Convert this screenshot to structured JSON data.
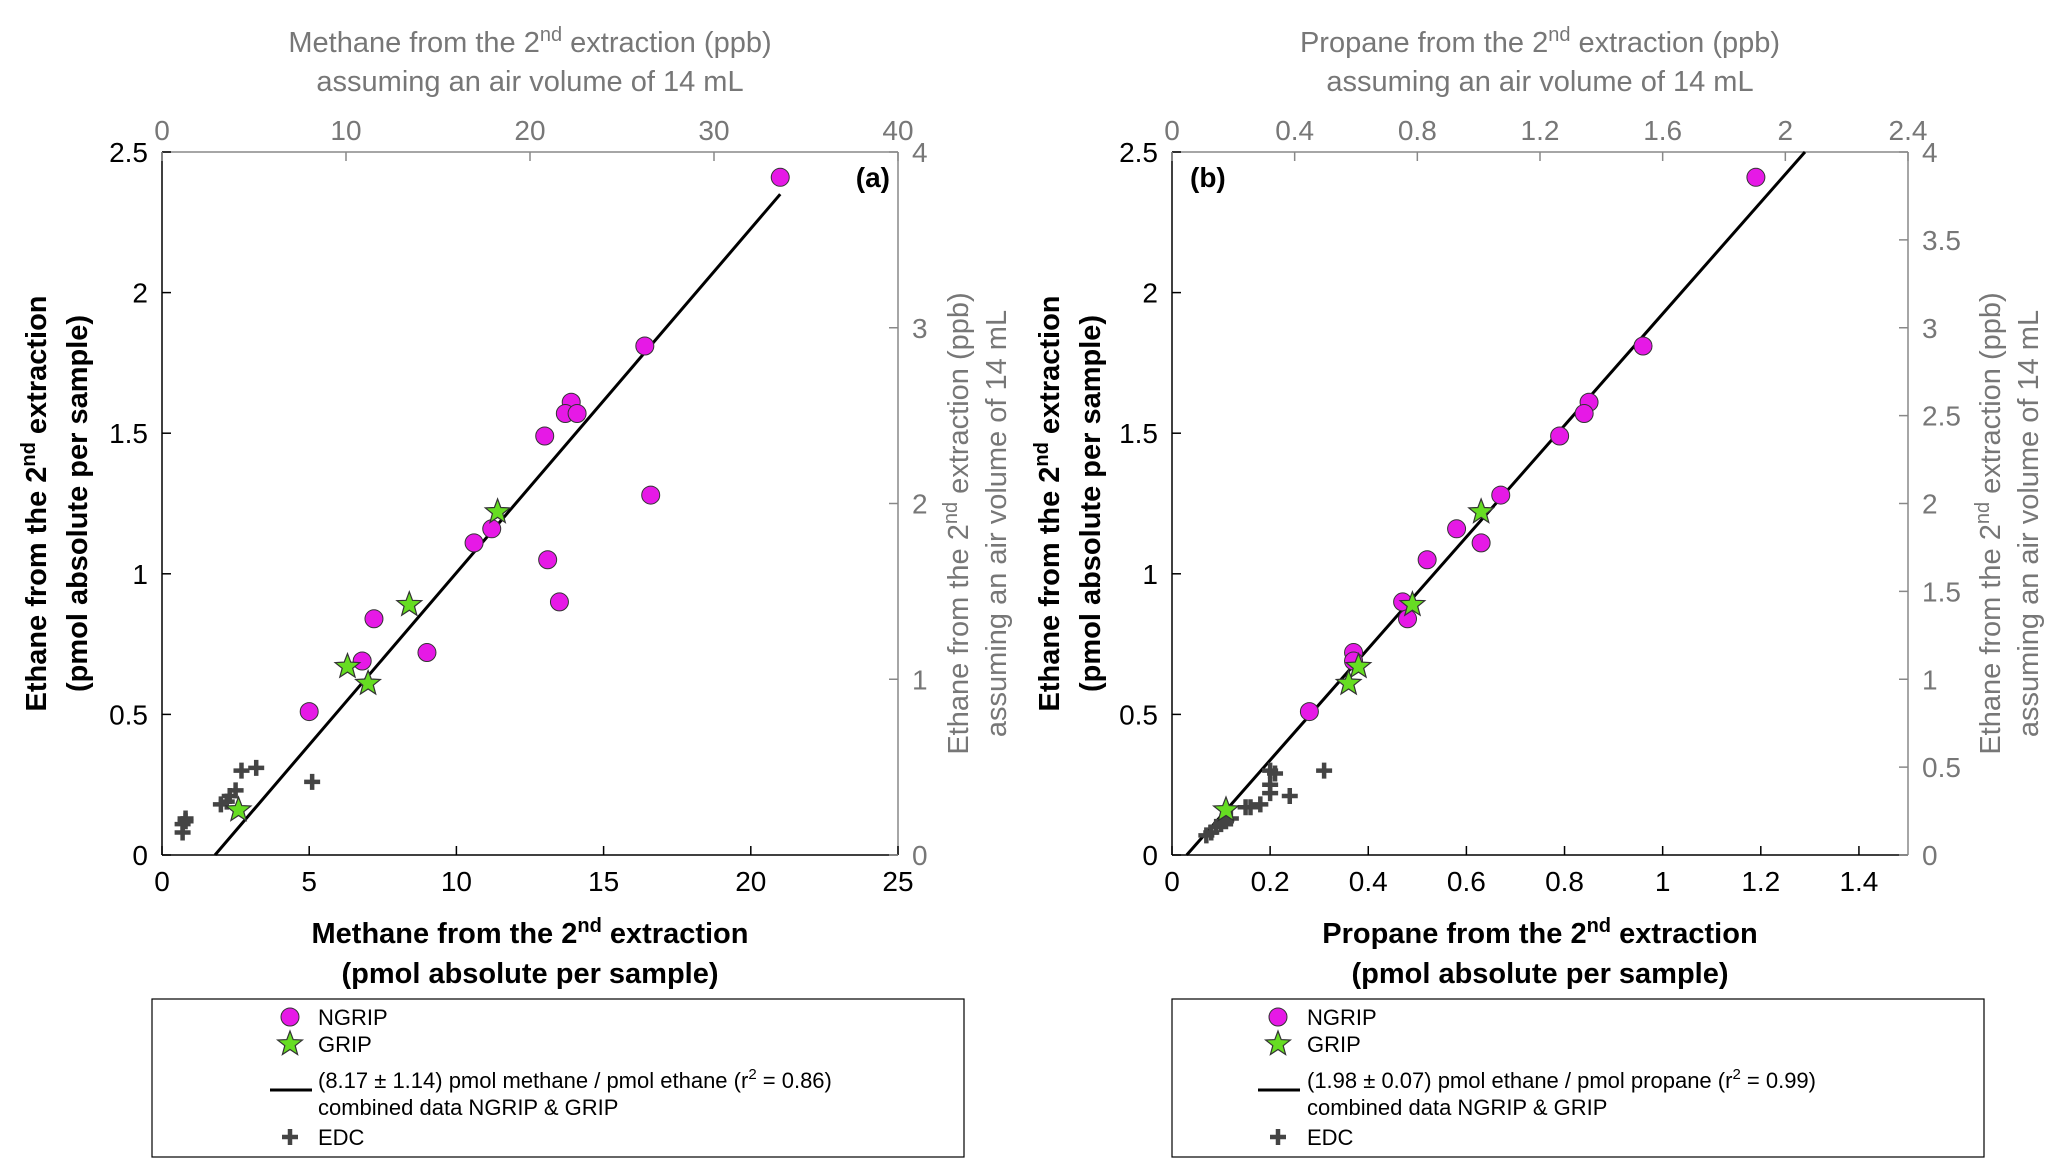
{
  "chart_data": [
    {
      "type": "scatter",
      "panel_label": "(a)",
      "xlabel": {
        "pre": "Methane from the 2",
        "sup": "nd",
        "post": " extraction",
        "line2": "(pmol absolute per sample)"
      },
      "ylabel": {
        "pre": "Ethane from the 2",
        "sup": "nd",
        "post": " extraction",
        "line2": "(pmol absolute per sample)"
      },
      "top_label": {
        "pre": "Methane from the 2",
        "sup": "nd",
        "post": " extraction (ppb)",
        "line2": "assuming an air volume of 14 mL"
      },
      "right_label": {
        "pre": "Ethane from the 2",
        "sup": "nd",
        "post": " extraction (ppb)",
        "line2": "assuming an air volume of 14 mL"
      },
      "xlim": [
        0,
        25
      ],
      "ylim": [
        0,
        2.5
      ],
      "xticks": [
        "0",
        "5",
        "10",
        "15",
        "20",
        "25"
      ],
      "yticks": [
        "0",
        "0.5",
        "1",
        "1.5",
        "2",
        "2.5"
      ],
      "top_lim": [
        0,
        40
      ],
      "top_ticks": [
        "0",
        "10",
        "20",
        "30",
        "40"
      ],
      "right_lim": [
        0,
        4
      ],
      "right_ticks": [
        "0",
        "1",
        "2",
        "3",
        "4"
      ],
      "series": [
        {
          "name": "NGRIP",
          "marker": "circle",
          "color": "#e619e6",
          "points": [
            [
              21.0,
              2.41
            ],
            [
              16.4,
              1.81
            ],
            [
              16.6,
              1.28
            ],
            [
              13.9,
              1.61
            ],
            [
              13.7,
              1.57
            ],
            [
              14.1,
              1.57
            ],
            [
              13.0,
              1.49
            ],
            [
              11.2,
              1.16
            ],
            [
              10.6,
              1.11
            ],
            [
              13.1,
              1.05
            ],
            [
              13.5,
              0.9
            ],
            [
              7.2,
              0.84
            ],
            [
              9.0,
              0.72
            ],
            [
              6.8,
              0.69
            ],
            [
              5.0,
              0.51
            ]
          ]
        },
        {
          "name": "GRIP",
          "marker": "star",
          "color": "#66dd22",
          "points": [
            [
              11.4,
              1.22
            ],
            [
              8.4,
              0.89
            ],
            [
              6.3,
              0.67
            ],
            [
              7.0,
              0.61
            ],
            [
              2.6,
              0.16
            ]
          ]
        },
        {
          "name": "EDC",
          "marker": "plus",
          "color": "#444444",
          "points": [
            [
              0.7,
              0.08
            ],
            [
              0.7,
              0.11
            ],
            [
              0.8,
              0.12
            ],
            [
              0.8,
              0.13
            ],
            [
              2.0,
              0.18
            ],
            [
              2.2,
              0.19
            ],
            [
              2.3,
              0.21
            ],
            [
              2.5,
              0.23
            ],
            [
              2.7,
              0.3
            ],
            [
              3.2,
              0.31
            ],
            [
              5.1,
              0.26
            ]
          ]
        }
      ],
      "fit": {
        "x": [
          1.8,
          21.0
        ],
        "y": [
          0.0,
          2.35
        ]
      },
      "legend": [
        {
          "marker": "circle",
          "lines": [
            "NGRIP"
          ]
        },
        {
          "marker": "star",
          "lines": [
            "GRIP"
          ]
        },
        {
          "marker": "line",
          "lines": [
            "(8.17 ± 1.14) pmol methane / pmol ethane (r2 = 0.86)",
            "combined data NGRIP & GRIP"
          ],
          "sup": "2",
          "supAfter": "(r"
        },
        {
          "marker": "plus",
          "lines": [
            "EDC"
          ]
        }
      ]
    },
    {
      "type": "scatter",
      "panel_label": "(b)",
      "xlabel": {
        "pre": "Propane from the 2",
        "sup": "nd",
        "post": " extraction",
        "line2": "(pmol absolute per sample)"
      },
      "ylabel": {
        "pre": "Ethane from the 2",
        "sup": "nd",
        "post": " extraction",
        "line2": "(pmol absolute per sample)"
      },
      "top_label": {
        "pre": "Propane from the 2",
        "sup": "nd",
        "post": " extraction (ppb)",
        "line2": "assuming an air volume of 14 mL"
      },
      "right_label": {
        "pre": "Ethane from the 2",
        "sup": "nd",
        "post": " extraction (ppb)",
        "line2": "assuming an air volume of 14 mL"
      },
      "xlim": [
        0,
        1.5
      ],
      "ylim": [
        0,
        2.5
      ],
      "xticks": [
        "0",
        "0.2",
        "0.4",
        "0.6",
        "0.8",
        "1",
        "1.2",
        "1.4"
      ],
      "xtick_values": [
        0,
        0.2,
        0.4,
        0.6,
        0.8,
        1.0,
        1.2,
        1.4
      ],
      "yticks": [
        "0",
        "0.5",
        "1",
        "1.5",
        "2",
        "2.5"
      ],
      "top_lim": [
        0,
        2.4
      ],
      "top_ticks": [
        "0",
        "0.4",
        "0.8",
        "1.2",
        "1.6",
        "2",
        "2.4"
      ],
      "right_lim": [
        0,
        4
      ],
      "right_ticks": [
        "0",
        "0.5",
        "1",
        "1.5",
        "2",
        "2.5",
        "3",
        "3.5",
        "4"
      ],
      "series": [
        {
          "name": "NGRIP",
          "marker": "circle",
          "color": "#e619e6",
          "points": [
            [
              1.19,
              2.41
            ],
            [
              0.96,
              1.81
            ],
            [
              0.85,
              1.61
            ],
            [
              0.84,
              1.57
            ],
            [
              0.79,
              1.49
            ],
            [
              0.67,
              1.28
            ],
            [
              0.58,
              1.16
            ],
            [
              0.63,
              1.11
            ],
            [
              0.52,
              1.05
            ],
            [
              0.47,
              0.9
            ],
            [
              0.48,
              0.84
            ],
            [
              0.37,
              0.72
            ],
            [
              0.37,
              0.69
            ],
            [
              0.28,
              0.51
            ]
          ]
        },
        {
          "name": "GRIP",
          "marker": "star",
          "color": "#66dd22",
          "points": [
            [
              0.63,
              1.22
            ],
            [
              0.49,
              0.89
            ],
            [
              0.38,
              0.67
            ],
            [
              0.36,
              0.61
            ],
            [
              0.11,
              0.16
            ]
          ]
        },
        {
          "name": "EDC",
          "marker": "plus",
          "color": "#444444",
          "points": [
            [
              0.07,
              0.07
            ],
            [
              0.08,
              0.08
            ],
            [
              0.09,
              0.1
            ],
            [
              0.1,
              0.11
            ],
            [
              0.11,
              0.12
            ],
            [
              0.12,
              0.13
            ],
            [
              0.15,
              0.17
            ],
            [
              0.16,
              0.17
            ],
            [
              0.18,
              0.18
            ],
            [
              0.2,
              0.22
            ],
            [
              0.2,
              0.25
            ],
            [
              0.21,
              0.29
            ],
            [
              0.2,
              0.3
            ],
            [
              0.24,
              0.21
            ],
            [
              0.31,
              0.3
            ]
          ]
        }
      ],
      "fit": {
        "x": [
          0.03,
          1.29
        ],
        "y": [
          0.0,
          2.5
        ]
      },
      "legend": [
        {
          "marker": "circle",
          "lines": [
            "NGRIP"
          ]
        },
        {
          "marker": "star",
          "lines": [
            "GRIP"
          ]
        },
        {
          "marker": "line",
          "lines": [
            "(1.98 ± 0.07) pmol ethane / pmol propane (r2 = 0.99)",
            "combined data NGRIP & GRIP"
          ],
          "sup": "2",
          "supAfter": "(r"
        },
        {
          "marker": "plus",
          "lines": [
            "EDC"
          ]
        }
      ]
    }
  ]
}
